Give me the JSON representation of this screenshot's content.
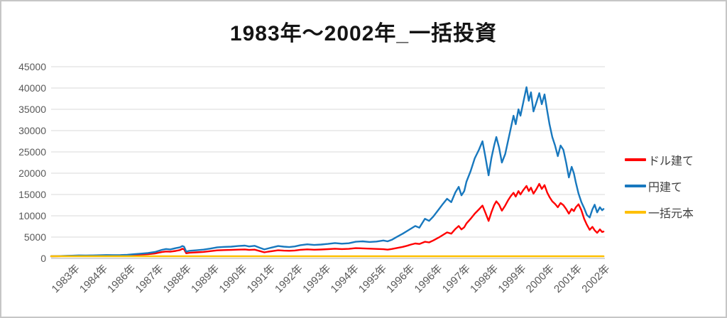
{
  "window": {
    "background": "#ffffff",
    "border_color": "#c6c6c6"
  },
  "chart_data": {
    "type": "line",
    "title": "1983年〜2002年_一括投資",
    "grid": true,
    "gridline_color": "#d9d9d9",
    "axis_line_color": "#bfbfbf",
    "tick_label_color": "#595959",
    "x_axis": {
      "tick_labels": [
        "1983年",
        "1984年",
        "1986年",
        "1987年",
        "1988年",
        "1989年",
        "1990年",
        "1991年",
        "1992年",
        "1993年",
        "1994年",
        "1995年",
        "1996年",
        "1996年",
        "1997年",
        "1998年",
        "1999年",
        "2000年",
        "2001年",
        "2002年"
      ]
    },
    "y_axis": {
      "min": 0,
      "max": 45000,
      "step": 5000,
      "ticks": [
        0,
        5000,
        10000,
        15000,
        20000,
        25000,
        30000,
        35000,
        40000,
        45000
      ]
    },
    "x_range": [
      1983,
      2003
    ],
    "legend": {
      "position": "right",
      "entries": [
        {
          "id": "dollar-series",
          "label": "ドル建て",
          "color": "#ff0000"
        },
        {
          "id": "yen-series",
          "label": "円建て",
          "color": "#1878be"
        },
        {
          "id": "principal-series",
          "label": "一括元本",
          "color": "#ffc000"
        }
      ]
    },
    "series": [
      {
        "id": "dollar-series",
        "name": "ドル建て",
        "color": "#ff0000",
        "width": 2.4,
        "points": [
          [
            1983.0,
            500
          ],
          [
            1983.25,
            520
          ],
          [
            1983.5,
            555
          ],
          [
            1983.75,
            590
          ],
          [
            1984.0,
            620
          ],
          [
            1984.25,
            595
          ],
          [
            1984.5,
            620
          ],
          [
            1984.75,
            655
          ],
          [
            1985.0,
            690
          ],
          [
            1985.25,
            675
          ],
          [
            1985.5,
            700
          ],
          [
            1985.75,
            740
          ],
          [
            1986.0,
            810
          ],
          [
            1986.25,
            900
          ],
          [
            1986.5,
            990
          ],
          [
            1986.75,
            1150
          ],
          [
            1987.0,
            1480
          ],
          [
            1987.15,
            1620
          ],
          [
            1987.3,
            1560
          ],
          [
            1987.5,
            1750
          ],
          [
            1987.65,
            1950
          ],
          [
            1987.74,
            2250
          ],
          [
            1987.8,
            2150
          ],
          [
            1987.88,
            1200
          ],
          [
            1988.0,
            1320
          ],
          [
            1988.25,
            1420
          ],
          [
            1988.5,
            1520
          ],
          [
            1988.75,
            1700
          ],
          [
            1989.0,
            1880
          ],
          [
            1989.25,
            1950
          ],
          [
            1989.5,
            1980
          ],
          [
            1989.75,
            2050
          ],
          [
            1990.0,
            2100
          ],
          [
            1990.15,
            1980
          ],
          [
            1990.35,
            2050
          ],
          [
            1990.55,
            1700
          ],
          [
            1990.7,
            1420
          ],
          [
            1990.85,
            1580
          ],
          [
            1991.0,
            1720
          ],
          [
            1991.2,
            1900
          ],
          [
            1991.4,
            1820
          ],
          [
            1991.6,
            1780
          ],
          [
            1991.8,
            1850
          ],
          [
            1992.0,
            2020
          ],
          [
            1992.25,
            2120
          ],
          [
            1992.5,
            2040
          ],
          [
            1992.75,
            2090
          ],
          [
            1993.0,
            2160
          ],
          [
            1993.25,
            2260
          ],
          [
            1993.5,
            2180
          ],
          [
            1993.75,
            2230
          ],
          [
            1994.0,
            2400
          ],
          [
            1994.25,
            2350
          ],
          [
            1994.5,
            2280
          ],
          [
            1994.75,
            2220
          ],
          [
            1995.0,
            2150
          ],
          [
            1995.15,
            2050
          ],
          [
            1995.3,
            2200
          ],
          [
            1995.5,
            2450
          ],
          [
            1995.7,
            2700
          ],
          [
            1995.85,
            2950
          ],
          [
            1996.0,
            3250
          ],
          [
            1996.15,
            3500
          ],
          [
            1996.3,
            3380
          ],
          [
            1996.5,
            3900
          ],
          [
            1996.65,
            3750
          ],
          [
            1996.8,
            4200
          ],
          [
            1997.0,
            4900
          ],
          [
            1997.15,
            5500
          ],
          [
            1997.3,
            6100
          ],
          [
            1997.45,
            5800
          ],
          [
            1997.6,
            6900
          ],
          [
            1997.72,
            7600
          ],
          [
            1997.82,
            6800
          ],
          [
            1997.92,
            7300
          ],
          [
            1998.0,
            8200
          ],
          [
            1998.15,
            9300
          ],
          [
            1998.3,
            10500
          ],
          [
            1998.45,
            11500
          ],
          [
            1998.58,
            12400
          ],
          [
            1998.68,
            10800
          ],
          [
            1998.8,
            8800
          ],
          [
            1998.9,
            10800
          ],
          [
            1999.0,
            12500
          ],
          [
            1999.08,
            13400
          ],
          [
            1999.18,
            12600
          ],
          [
            1999.28,
            11200
          ],
          [
            1999.4,
            12400
          ],
          [
            1999.5,
            13600
          ],
          [
            1999.6,
            14600
          ],
          [
            1999.7,
            15400
          ],
          [
            1999.78,
            14500
          ],
          [
            1999.88,
            15800
          ],
          [
            1999.95,
            15000
          ],
          [
            2000.05,
            16000
          ],
          [
            2000.17,
            17000
          ],
          [
            2000.25,
            15800
          ],
          [
            2000.33,
            16600
          ],
          [
            2000.42,
            15200
          ],
          [
            2000.52,
            16200
          ],
          [
            2000.63,
            17500
          ],
          [
            2000.72,
            16300
          ],
          [
            2000.82,
            17200
          ],
          [
            2000.92,
            15400
          ],
          [
            2001.0,
            14400
          ],
          [
            2001.1,
            13400
          ],
          [
            2001.2,
            12800
          ],
          [
            2001.3,
            12000
          ],
          [
            2001.4,
            13000
          ],
          [
            2001.5,
            12500
          ],
          [
            2001.6,
            11600
          ],
          [
            2001.7,
            10500
          ],
          [
            2001.8,
            11600
          ],
          [
            2001.88,
            11100
          ],
          [
            2001.95,
            12000
          ],
          [
            2002.05,
            12700
          ],
          [
            2002.15,
            11300
          ],
          [
            2002.25,
            9300
          ],
          [
            2002.35,
            7900
          ],
          [
            2002.45,
            6700
          ],
          [
            2002.55,
            7400
          ],
          [
            2002.63,
            6600
          ],
          [
            2002.72,
            6000
          ],
          [
            2002.82,
            6800
          ],
          [
            2002.9,
            6200
          ],
          [
            2002.95,
            6300
          ]
        ]
      },
      {
        "id": "yen-series",
        "name": "円建て",
        "color": "#1878be",
        "width": 2.4,
        "points": [
          [
            1983.0,
            500
          ],
          [
            1983.25,
            540
          ],
          [
            1983.5,
            590
          ],
          [
            1983.75,
            640
          ],
          [
            1984.0,
            700
          ],
          [
            1984.25,
            670
          ],
          [
            1984.5,
            700
          ],
          [
            1984.75,
            740
          ],
          [
            1985.0,
            780
          ],
          [
            1985.25,
            760
          ],
          [
            1985.5,
            790
          ],
          [
            1985.75,
            850
          ],
          [
            1986.0,
            980
          ],
          [
            1986.25,
            1120
          ],
          [
            1986.5,
            1260
          ],
          [
            1986.75,
            1500
          ],
          [
            1987.0,
            2000
          ],
          [
            1987.15,
            2200
          ],
          [
            1987.3,
            2100
          ],
          [
            1987.5,
            2400
          ],
          [
            1987.65,
            2600
          ],
          [
            1987.74,
            2900
          ],
          [
            1987.8,
            2750
          ],
          [
            1987.88,
            1600
          ],
          [
            1988.0,
            1780
          ],
          [
            1988.25,
            1900
          ],
          [
            1988.5,
            2050
          ],
          [
            1988.75,
            2300
          ],
          [
            1989.0,
            2600
          ],
          [
            1989.25,
            2700
          ],
          [
            1989.5,
            2750
          ],
          [
            1989.75,
            2900
          ],
          [
            1990.0,
            3000
          ],
          [
            1990.15,
            2800
          ],
          [
            1990.35,
            2950
          ],
          [
            1990.55,
            2450
          ],
          [
            1990.7,
            2100
          ],
          [
            1990.85,
            2350
          ],
          [
            1991.0,
            2600
          ],
          [
            1991.2,
            2900
          ],
          [
            1991.4,
            2750
          ],
          [
            1991.6,
            2650
          ],
          [
            1991.8,
            2800
          ],
          [
            1992.0,
            3100
          ],
          [
            1992.25,
            3300
          ],
          [
            1992.5,
            3150
          ],
          [
            1992.75,
            3250
          ],
          [
            1993.0,
            3400
          ],
          [
            1993.25,
            3600
          ],
          [
            1993.5,
            3450
          ],
          [
            1993.75,
            3550
          ],
          [
            1994.0,
            3900
          ],
          [
            1994.25,
            4000
          ],
          [
            1994.5,
            3850
          ],
          [
            1994.75,
            3950
          ],
          [
            1995.0,
            4200
          ],
          [
            1995.15,
            4000
          ],
          [
            1995.3,
            4350
          ],
          [
            1995.5,
            5100
          ],
          [
            1995.7,
            5800
          ],
          [
            1995.85,
            6400
          ],
          [
            1996.0,
            7000
          ],
          [
            1996.15,
            7600
          ],
          [
            1996.3,
            7200
          ],
          [
            1996.5,
            9300
          ],
          [
            1996.65,
            8800
          ],
          [
            1996.8,
            9800
          ],
          [
            1997.0,
            11500
          ],
          [
            1997.15,
            12800
          ],
          [
            1997.3,
            14000
          ],
          [
            1997.45,
            13200
          ],
          [
            1997.6,
            15500
          ],
          [
            1997.72,
            16800
          ],
          [
            1997.82,
            14800
          ],
          [
            1997.92,
            15800
          ],
          [
            1998.0,
            18000
          ],
          [
            1998.15,
            20500
          ],
          [
            1998.3,
            23500
          ],
          [
            1998.45,
            25500
          ],
          [
            1998.58,
            27500
          ],
          [
            1998.68,
            24000
          ],
          [
            1998.8,
            19500
          ],
          [
            1998.9,
            23500
          ],
          [
            1999.0,
            26500
          ],
          [
            1999.08,
            28500
          ],
          [
            1999.18,
            26000
          ],
          [
            1999.28,
            22500
          ],
          [
            1999.4,
            24500
          ],
          [
            1999.5,
            27500
          ],
          [
            1999.6,
            30500
          ],
          [
            1999.7,
            33500
          ],
          [
            1999.78,
            31500
          ],
          [
            1999.88,
            35000
          ],
          [
            1999.95,
            33500
          ],
          [
            2000.05,
            36500
          ],
          [
            2000.17,
            40200
          ],
          [
            2000.25,
            37000
          ],
          [
            2000.33,
            39000
          ],
          [
            2000.42,
            34500
          ],
          [
            2000.52,
            36500
          ],
          [
            2000.63,
            38800
          ],
          [
            2000.72,
            36200
          ],
          [
            2000.82,
            38500
          ],
          [
            2000.92,
            34500
          ],
          [
            2001.0,
            31500
          ],
          [
            2001.1,
            28500
          ],
          [
            2001.2,
            26500
          ],
          [
            2001.3,
            24000
          ],
          [
            2001.4,
            26500
          ],
          [
            2001.5,
            25500
          ],
          [
            2001.6,
            22500
          ],
          [
            2001.7,
            19000
          ],
          [
            2001.8,
            21500
          ],
          [
            2001.88,
            20000
          ],
          [
            2001.95,
            17800
          ],
          [
            2002.05,
            15200
          ],
          [
            2002.15,
            13200
          ],
          [
            2002.25,
            11800
          ],
          [
            2002.35,
            10200
          ],
          [
            2002.45,
            9600
          ],
          [
            2002.55,
            11500
          ],
          [
            2002.63,
            12600
          ],
          [
            2002.72,
            10800
          ],
          [
            2002.82,
            12000
          ],
          [
            2002.9,
            11300
          ],
          [
            2002.95,
            11600
          ]
        ]
      },
      {
        "id": "principal-series",
        "name": "一括元本",
        "color": "#ffc000",
        "width": 2.6,
        "points": [
          [
            1983.0,
            500
          ],
          [
            2002.95,
            500
          ]
        ]
      }
    ]
  }
}
